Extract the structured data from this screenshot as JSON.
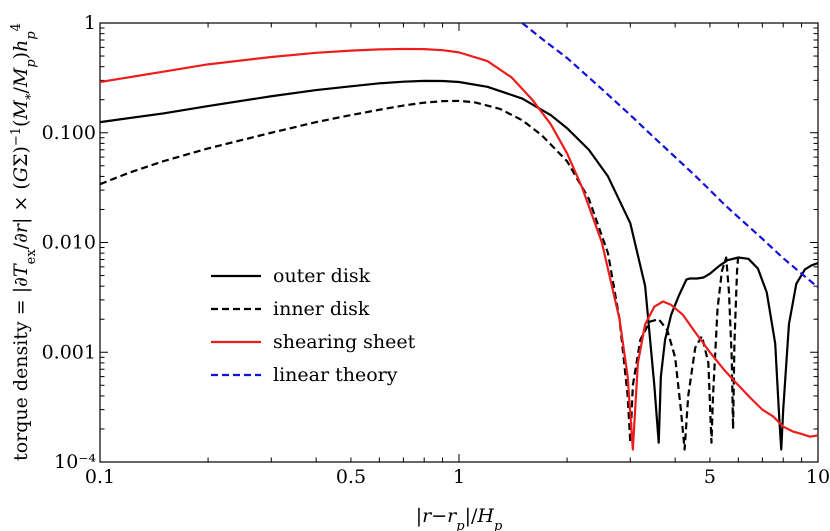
{
  "chart_data": {
    "type": "line",
    "title": "",
    "xlabel": "|r−r_p|/H_p",
    "ylabel": "torque density = |∂T_ex/∂r| × (GΣ)^−1 (M_*/M_p) h_p^4",
    "x_scale": "log",
    "y_scale": "log",
    "xlim": [
      0.1,
      10
    ],
    "ylim": [
      0.0001,
      1
    ],
    "x_ticks": [
      {
        "value": 0.1,
        "label": "0.1"
      },
      {
        "value": 0.5,
        "label": "0.5"
      },
      {
        "value": 1,
        "label": "1"
      },
      {
        "value": 5,
        "label": "5"
      },
      {
        "value": 10,
        "label": "10"
      }
    ],
    "y_ticks": [
      {
        "value": 0.0001,
        "label": "10⁻⁴"
      },
      {
        "value": 0.001,
        "label": "0.001"
      },
      {
        "value": 0.01,
        "label": "0.010"
      },
      {
        "value": 0.1,
        "label": "0.100"
      },
      {
        "value": 1,
        "label": "1"
      }
    ],
    "legend_position": "lower-left",
    "series": [
      {
        "name": "outer disk",
        "color": "#000000",
        "dash": "solid",
        "points": [
          [
            0.1,
            0.125
          ],
          [
            0.15,
            0.15
          ],
          [
            0.2,
            0.175
          ],
          [
            0.3,
            0.215
          ],
          [
            0.4,
            0.245
          ],
          [
            0.5,
            0.265
          ],
          [
            0.6,
            0.282
          ],
          [
            0.7,
            0.292
          ],
          [
            0.8,
            0.297
          ],
          [
            0.9,
            0.296
          ],
          [
            1.0,
            0.29
          ],
          [
            1.2,
            0.262
          ],
          [
            1.5,
            0.205
          ],
          [
            1.8,
            0.145
          ],
          [
            2.0,
            0.11
          ],
          [
            2.3,
            0.07
          ],
          [
            2.6,
            0.04
          ],
          [
            3.0,
            0.015
          ],
          [
            3.3,
            0.004
          ],
          [
            3.5,
            0.0005
          ],
          [
            3.6,
            0.00015
          ],
          [
            3.65,
            0.0006
          ],
          [
            3.75,
            0.0013
          ],
          [
            3.9,
            0.0022
          ],
          [
            4.1,
            0.0033
          ],
          [
            4.3,
            0.0046
          ],
          [
            4.4,
            0.0047
          ],
          [
            4.6,
            0.0047
          ],
          [
            4.8,
            0.0048
          ],
          [
            5.0,
            0.0052
          ],
          [
            5.3,
            0.0061
          ],
          [
            5.6,
            0.0069
          ],
          [
            6.0,
            0.0073
          ],
          [
            6.4,
            0.0071
          ],
          [
            6.8,
            0.0058
          ],
          [
            7.2,
            0.0035
          ],
          [
            7.6,
            0.0012
          ],
          [
            7.8,
            0.00025
          ],
          [
            7.9,
            0.00013
          ],
          [
            8.0,
            0.0003
          ],
          [
            8.3,
            0.0018
          ],
          [
            8.7,
            0.0042
          ],
          [
            9.2,
            0.0057
          ],
          [
            9.6,
            0.0062
          ],
          [
            10.0,
            0.0065
          ]
        ]
      },
      {
        "name": "inner disk",
        "color": "#000000",
        "dash": "dashed",
        "points": [
          [
            0.1,
            0.034
          ],
          [
            0.12,
            0.043
          ],
          [
            0.15,
            0.055
          ],
          [
            0.2,
            0.072
          ],
          [
            0.3,
            0.1
          ],
          [
            0.4,
            0.125
          ],
          [
            0.5,
            0.145
          ],
          [
            0.6,
            0.162
          ],
          [
            0.7,
            0.177
          ],
          [
            0.8,
            0.188
          ],
          [
            0.9,
            0.194
          ],
          [
            1.0,
            0.195
          ],
          [
            1.1,
            0.19
          ],
          [
            1.3,
            0.165
          ],
          [
            1.5,
            0.13
          ],
          [
            1.7,
            0.095
          ],
          [
            2.0,
            0.055
          ],
          [
            2.3,
            0.025
          ],
          [
            2.6,
            0.008
          ],
          [
            2.8,
            0.002
          ],
          [
            2.95,
            0.0004
          ],
          [
            3.0,
            0.00015
          ],
          [
            3.05,
            0.0005
          ],
          [
            3.2,
            0.0013
          ],
          [
            3.4,
            0.0019
          ],
          [
            3.6,
            0.002
          ],
          [
            3.8,
            0.0016
          ],
          [
            4.0,
            0.0009
          ],
          [
            4.15,
            0.0003
          ],
          [
            4.25,
            0.00013
          ],
          [
            4.35,
            0.0004
          ],
          [
            4.55,
            0.0011
          ],
          [
            4.75,
            0.0014
          ],
          [
            4.95,
            0.0008
          ],
          [
            5.05,
            0.00015
          ],
          [
            5.1,
            0.0004
          ],
          [
            5.25,
            0.0025
          ],
          [
            5.4,
            0.0055
          ],
          [
            5.55,
            0.0073
          ],
          [
            5.65,
            0.0035
          ],
          [
            5.75,
            0.0009
          ],
          [
            5.8,
            0.0002
          ],
          [
            5.85,
            0.0012
          ],
          [
            5.95,
            0.0055
          ],
          [
            6.0,
            0.0078
          ]
        ]
      },
      {
        "name": "shearing sheet",
        "color": "#ee1c1c",
        "dash": "solid",
        "points": [
          [
            0.1,
            0.29
          ],
          [
            0.15,
            0.36
          ],
          [
            0.2,
            0.42
          ],
          [
            0.3,
            0.49
          ],
          [
            0.4,
            0.535
          ],
          [
            0.5,
            0.56
          ],
          [
            0.6,
            0.575
          ],
          [
            0.7,
            0.58
          ],
          [
            0.8,
            0.578
          ],
          [
            0.9,
            0.565
          ],
          [
            1.0,
            0.54
          ],
          [
            1.2,
            0.45
          ],
          [
            1.4,
            0.32
          ],
          [
            1.6,
            0.2
          ],
          [
            1.8,
            0.12
          ],
          [
            2.0,
            0.065
          ],
          [
            2.2,
            0.032
          ],
          [
            2.5,
            0.01
          ],
          [
            2.8,
            0.002
          ],
          [
            2.95,
            0.0006
          ],
          [
            3.05,
            0.00013
          ],
          [
            3.15,
            0.0008
          ],
          [
            3.3,
            0.0018
          ],
          [
            3.5,
            0.0026
          ],
          [
            3.7,
            0.0029
          ],
          [
            3.9,
            0.0027
          ],
          [
            4.2,
            0.0022
          ],
          [
            4.5,
            0.0016
          ],
          [
            5.0,
            0.001
          ],
          [
            5.5,
            0.00068
          ],
          [
            6.0,
            0.0005
          ],
          [
            6.5,
            0.00038
          ],
          [
            7.0,
            0.0003
          ],
          [
            7.5,
            0.00026
          ],
          [
            8.0,
            0.00021
          ],
          [
            8.5,
            0.00019
          ],
          [
            9.0,
            0.00018
          ],
          [
            9.5,
            0.00017
          ],
          [
            10.0,
            0.000175
          ]
        ]
      },
      {
        "name": "linear theory",
        "color": "#1111dd",
        "dash": "dashed",
        "points": [
          [
            1.5,
            1.0
          ],
          [
            1.7,
            0.72
          ],
          [
            2.0,
            0.48
          ],
          [
            2.5,
            0.25
          ],
          [
            3.0,
            0.145
          ],
          [
            3.5,
            0.09
          ],
          [
            4.0,
            0.06
          ],
          [
            4.5,
            0.042
          ],
          [
            5.0,
            0.03
          ],
          [
            5.5,
            0.022
          ],
          [
            6.0,
            0.017
          ],
          [
            7.0,
            0.0108
          ],
          [
            8.0,
            0.0072
          ],
          [
            9.0,
            0.0052
          ],
          [
            10.0,
            0.0039
          ]
        ]
      }
    ]
  }
}
